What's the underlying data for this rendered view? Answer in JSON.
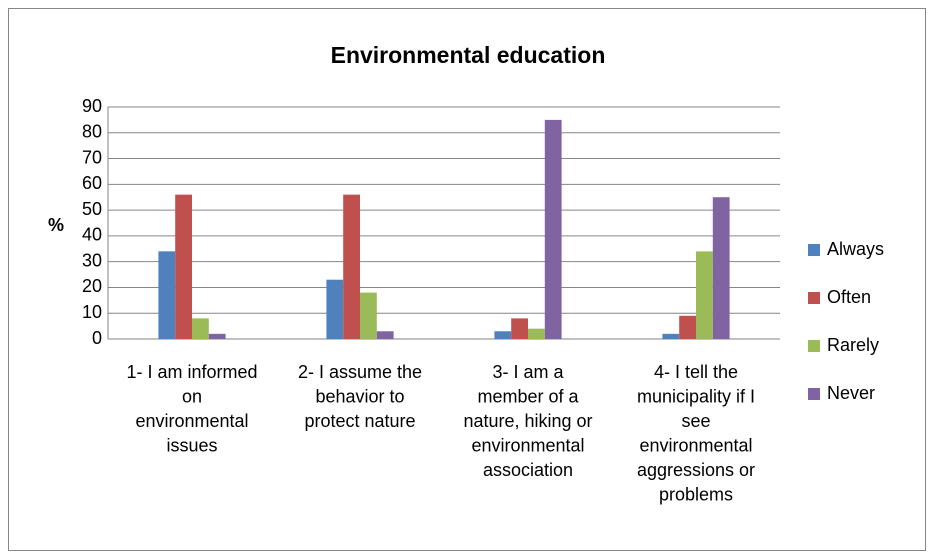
{
  "chart_data": {
    "type": "bar",
    "title": "Environmental education",
    "y_label": "%",
    "categories": [
      "1- I am informed on environmental issues",
      "2- I assume the behavior to protect nature",
      "3- I am a member of a nature, hiking or environmental association",
      "4- I tell the municipality if I see environmental aggressions or problems"
    ],
    "series": [
      {
        "name": "Always",
        "color": "#4f81bd",
        "values": [
          34,
          23,
          3,
          2
        ]
      },
      {
        "name": "Often",
        "color": "#c0504d",
        "values": [
          56,
          56,
          8,
          9
        ]
      },
      {
        "name": "Rarely",
        "color": "#9bbb59",
        "values": [
          8,
          18,
          4,
          34
        ]
      },
      {
        "name": "Never",
        "color": "#8064a2",
        "values": [
          2,
          3,
          85,
          55
        ]
      }
    ],
    "ylim": [
      0,
      90
    ],
    "yticks": [
      0,
      10,
      20,
      30,
      40,
      50,
      60,
      70,
      80,
      90
    ],
    "grid": true,
    "legend": "right"
  }
}
